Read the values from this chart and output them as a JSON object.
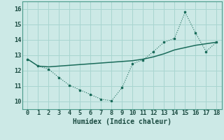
{
  "xlabel": "Humidex (Indice chaleur)",
  "background_color": "#cce9e6",
  "line_color": "#1a6b5a",
  "grid_color": "#a8d5d0",
  "x": [
    0,
    1,
    2,
    3,
    4,
    5,
    6,
    7,
    8,
    9,
    10,
    11,
    12,
    13,
    14,
    15,
    16,
    17,
    18
  ],
  "y_jagged": [
    12.75,
    12.3,
    12.1,
    11.55,
    11.05,
    10.75,
    10.45,
    10.15,
    10.05,
    10.9,
    12.45,
    12.7,
    13.25,
    13.85,
    14.1,
    15.8,
    14.45,
    13.25,
    13.85
  ],
  "y_smooth": [
    12.75,
    12.3,
    12.25,
    12.3,
    12.35,
    12.4,
    12.45,
    12.5,
    12.55,
    12.6,
    12.65,
    12.75,
    12.9,
    13.1,
    13.35,
    13.5,
    13.65,
    13.75,
    13.85
  ],
  "xlim": [
    -0.5,
    18.5
  ],
  "ylim": [
    9.5,
    16.5
  ],
  "yticks": [
    10,
    11,
    12,
    13,
    14,
    15,
    16
  ],
  "xticks": [
    0,
    1,
    2,
    3,
    4,
    5,
    6,
    7,
    8,
    9,
    10,
    11,
    12,
    13,
    14,
    15,
    16,
    17,
    18
  ]
}
